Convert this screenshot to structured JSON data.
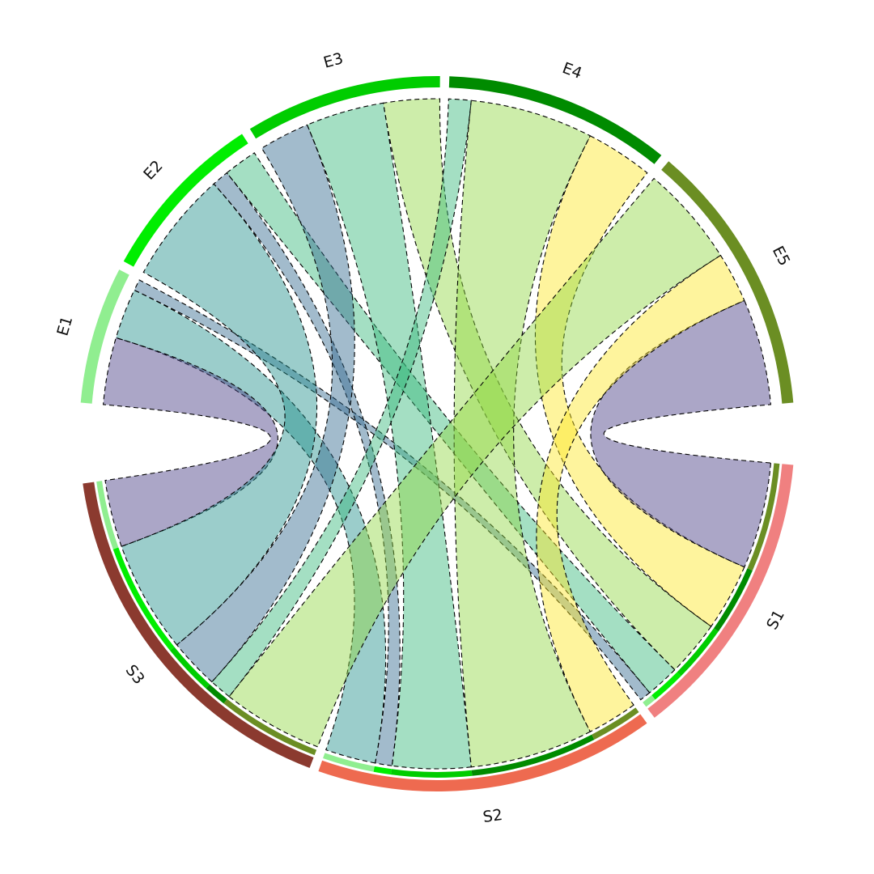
{
  "chart_data": {
    "type": "chord",
    "sources": [
      "S1",
      "S2",
      "S3"
    ],
    "targets": [
      "E1",
      "E2",
      "E3",
      "E4",
      "E5"
    ],
    "source_colors": [
      "#f08080",
      "#ee6a50",
      "#8b3a2f"
    ],
    "target_colors": [
      "#90ee90",
      "#00ee00",
      "#00cd00",
      "#008b00",
      "#6b8e23"
    ],
    "matrix": [
      [
        2,
        6,
        10,
        12,
        19
      ],
      [
        9,
        3,
        14,
        22,
        9
      ],
      [
        12,
        20,
        9,
        4,
        18
      ]
    ],
    "ribbon_colors": [
      "#31688e",
      "#35b779",
      "#90d743",
      "#fde725",
      "#443983",
      "#21918c"
    ]
  }
}
